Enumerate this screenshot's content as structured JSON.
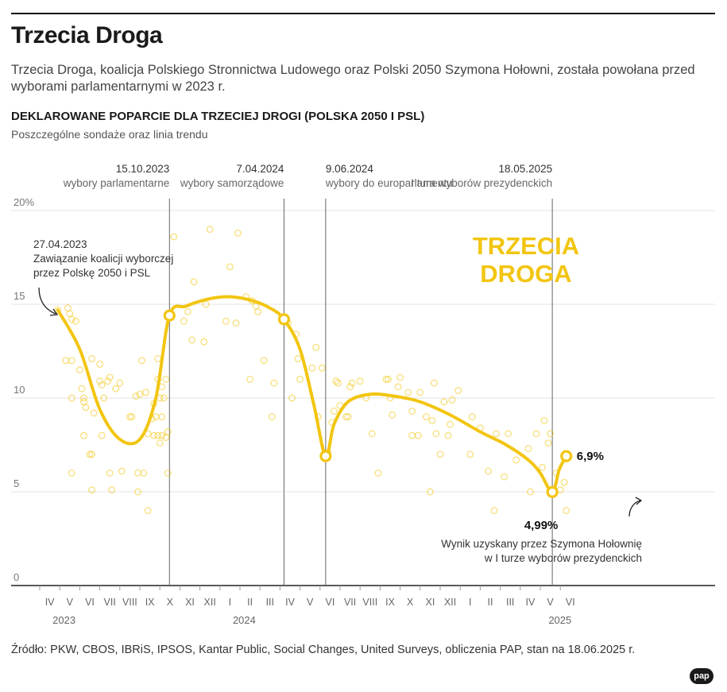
{
  "header": {
    "title": "Trzecia Droga",
    "subtitle": "Trzecia Droga, koalicja Polskiego Stronnictwa Ludowego oraz Polski 2050 Szymona Hołowni, została powołana przed wyborami parlamentarnymi w 2023 r.",
    "chart_heading": "DEKLAROWANE POPARCIE DLA TRZECIEJ DROGI (POLSKA 2050 I PSL)",
    "chart_subheading": "Poszczególne sondaże oraz linia trendu"
  },
  "footer": {
    "source": "Źródło: PKW, CBOS, IBRiS, IPSOS, Kantar Public, Social Changes, United Surveys, obliczenia PAP, stan na 18.06.2025 r.",
    "logo": "pap"
  },
  "colors": {
    "accent": "#f2c511",
    "line": "#f2c511",
    "grid": "#e3e3e3",
    "event": "#666666"
  },
  "chart_data": {
    "type": "scatter",
    "series_label": "TRZECIA DROGA",
    "ylim": [
      0,
      20
    ],
    "xlim": [
      0,
      26.6
    ],
    "y_ticks": [
      {
        "value": 20,
        "label": "20%"
      },
      {
        "value": 15,
        "label": "15"
      },
      {
        "value": 10,
        "label": "10"
      },
      {
        "value": 5,
        "label": "5"
      },
      {
        "value": 0,
        "label": "0"
      }
    ],
    "x_month_labels": [
      {
        "m": 0.5,
        "label": "IV"
      },
      {
        "m": 1.5,
        "label": "V"
      },
      {
        "m": 2.5,
        "label": "VI"
      },
      {
        "m": 3.5,
        "label": "VII"
      },
      {
        "m": 4.5,
        "label": "VIII"
      },
      {
        "m": 5.5,
        "label": "IX"
      },
      {
        "m": 6.5,
        "label": "X"
      },
      {
        "m": 7.5,
        "label": "XI"
      },
      {
        "m": 8.5,
        "label": "XII"
      },
      {
        "m": 9.5,
        "label": "I"
      },
      {
        "m": 10.5,
        "label": "II"
      },
      {
        "m": 11.5,
        "label": "III"
      },
      {
        "m": 12.5,
        "label": "IV"
      },
      {
        "m": 13.5,
        "label": "V"
      },
      {
        "m": 14.5,
        "label": "VI"
      },
      {
        "m": 15.5,
        "label": "VII"
      },
      {
        "m": 16.5,
        "label": "VIII"
      },
      {
        "m": 17.5,
        "label": "IX"
      },
      {
        "m": 18.5,
        "label": "X"
      },
      {
        "m": 19.5,
        "label": "XI"
      },
      {
        "m": 20.5,
        "label": "XII"
      },
      {
        "m": 21.5,
        "label": "I"
      },
      {
        "m": 22.5,
        "label": "II"
      },
      {
        "m": 23.5,
        "label": "III"
      },
      {
        "m": 24.5,
        "label": "IV"
      },
      {
        "m": 25.5,
        "label": "V"
      },
      {
        "m": 26.5,
        "label": "VI"
      }
    ],
    "x_year_labels": [
      {
        "m": 0.5,
        "label": "2023"
      },
      {
        "m": 9.5,
        "label": "2024"
      },
      {
        "m": 26.5,
        "label": "2025"
      }
    ],
    "events": [
      {
        "m": 6.48,
        "date": "15.10.2023",
        "label": "wybory parlamentarne"
      },
      {
        "m": 12.2,
        "date": "7.04.2024",
        "label": "wybory samorządowe"
      },
      {
        "m": 14.28,
        "date": "9.06.2024",
        "label": "wybory do europarlamentu"
      },
      {
        "m": 25.6,
        "date": "18.05.2025",
        "label": "I tura wyborów prezydenckich"
      }
    ],
    "trend": [
      {
        "m": 0.9,
        "v": 14.7
      },
      {
        "m": 2.0,
        "v": 12.6
      },
      {
        "m": 3.0,
        "v": 9.4
      },
      {
        "m": 4.0,
        "v": 7.8
      },
      {
        "m": 5.0,
        "v": 7.8
      },
      {
        "m": 5.8,
        "v": 10.0
      },
      {
        "m": 6.48,
        "v": 14.4
      },
      {
        "m": 7.3,
        "v": 14.9
      },
      {
        "m": 8.5,
        "v": 15.3
      },
      {
        "m": 9.5,
        "v": 15.4
      },
      {
        "m": 10.6,
        "v": 15.2
      },
      {
        "m": 11.5,
        "v": 14.8
      },
      {
        "m": 12.2,
        "v": 14.2
      },
      {
        "m": 13.0,
        "v": 12.6
      },
      {
        "m": 13.7,
        "v": 9.6
      },
      {
        "m": 14.28,
        "v": 6.9
      },
      {
        "m": 14.7,
        "v": 8.6
      },
      {
        "m": 15.4,
        "v": 9.8
      },
      {
        "m": 16.5,
        "v": 10.2
      },
      {
        "m": 17.7,
        "v": 10.1
      },
      {
        "m": 19.0,
        "v": 9.8
      },
      {
        "m": 20.5,
        "v": 9.1
      },
      {
        "m": 22.0,
        "v": 8.2
      },
      {
        "m": 23.3,
        "v": 7.5
      },
      {
        "m": 24.4,
        "v": 6.7
      },
      {
        "m": 25.0,
        "v": 6.0
      },
      {
        "m": 25.6,
        "v": 4.99
      },
      {
        "m": 25.95,
        "v": 6.2
      },
      {
        "m": 26.3,
        "v": 6.9
      }
    ],
    "markers": [
      {
        "m": 6.48,
        "v": 14.4,
        "label": ""
      },
      {
        "m": 12.2,
        "v": 14.2,
        "label": ""
      },
      {
        "m": 14.28,
        "v": 6.9,
        "label": ""
      },
      {
        "m": 25.6,
        "v": 4.99,
        "label": "4,99%"
      },
      {
        "m": 26.3,
        "v": 6.9,
        "label": "6,9%"
      }
    ],
    "polls": [
      [
        0.9,
        14.7
      ],
      [
        1.4,
        14.8
      ],
      [
        1.5,
        14.5
      ],
      [
        1.6,
        14.2
      ],
      [
        1.8,
        14.1
      ],
      [
        1.3,
        12.0
      ],
      [
        1.6,
        12.0
      ],
      [
        1.6,
        10.0
      ],
      [
        1.6,
        6.0
      ],
      [
        2.0,
        11.5
      ],
      [
        2.1,
        10.5
      ],
      [
        2.2,
        10.0
      ],
      [
        2.2,
        9.8
      ],
      [
        2.2,
        8.0
      ],
      [
        2.3,
        9.5
      ],
      [
        2.7,
        9.2
      ],
      [
        2.6,
        12.1
      ],
      [
        2.5,
        7.0
      ],
      [
        2.6,
        7.0
      ],
      [
        2.6,
        5.1
      ],
      [
        3.0,
        11.8
      ],
      [
        3.0,
        10.9
      ],
      [
        3.1,
        10.7
      ],
      [
        3.2,
        10.0
      ],
      [
        3.1,
        8.0
      ],
      [
        3.4,
        10.9
      ],
      [
        3.5,
        11.1
      ],
      [
        3.5,
        6.0
      ],
      [
        3.6,
        5.1
      ],
      [
        3.8,
        10.5
      ],
      [
        4.0,
        10.8
      ],
      [
        4.1,
        6.1
      ],
      [
        4.5,
        9.0
      ],
      [
        4.6,
        9.0
      ],
      [
        4.8,
        10.1
      ],
      [
        4.9,
        6.0
      ],
      [
        4.9,
        5.0
      ],
      [
        5.0,
        10.2
      ],
      [
        5.1,
        12.0
      ],
      [
        5.2,
        6.0
      ],
      [
        5.3,
        10.3
      ],
      [
        5.4,
        8.1
      ],
      [
        5.4,
        4.0
      ],
      [
        5.6,
        8.9
      ],
      [
        5.7,
        9.7
      ],
      [
        5.7,
        8.0
      ],
      [
        5.8,
        9.0
      ],
      [
        5.9,
        12.1
      ],
      [
        5.9,
        11.0
      ],
      [
        5.9,
        8.0
      ],
      [
        6.0,
        10.0
      ],
      [
        6.0,
        7.6
      ],
      [
        6.1,
        8.0
      ],
      [
        6.1,
        10.6
      ],
      [
        6.1,
        9.0
      ],
      [
        6.2,
        10.0
      ],
      [
        6.3,
        11.0
      ],
      [
        6.4,
        6.0
      ],
      [
        6.4,
        8.2
      ],
      [
        6.3,
        7.9
      ],
      [
        6.7,
        18.6
      ],
      [
        7.2,
        14.1
      ],
      [
        7.4,
        14.6
      ],
      [
        7.6,
        13.1
      ],
      [
        7.7,
        16.2
      ],
      [
        8.2,
        13.0
      ],
      [
        8.3,
        15.0
      ],
      [
        8.5,
        19.0
      ],
      [
        9.3,
        14.1
      ],
      [
        9.5,
        17.0
      ],
      [
        9.8,
        14.0
      ],
      [
        9.9,
        18.8
      ],
      [
        10.3,
        15.4
      ],
      [
        10.5,
        11.0
      ],
      [
        10.6,
        15.2
      ],
      [
        10.8,
        14.9
      ],
      [
        10.9,
        14.6
      ],
      [
        11.2,
        12.0
      ],
      [
        11.6,
        9.0
      ],
      [
        11.7,
        10.8
      ],
      [
        12.4,
        14.0
      ],
      [
        12.6,
        10.0
      ],
      [
        12.8,
        13.4
      ],
      [
        12.9,
        12.1
      ],
      [
        13.0,
        11.0
      ],
      [
        13.6,
        11.6
      ],
      [
        13.8,
        12.7
      ],
      [
        13.9,
        9.0
      ],
      [
        14.1,
        11.6
      ],
      [
        14.4,
        7.1
      ],
      [
        14.6,
        8.7
      ],
      [
        14.7,
        9.3
      ],
      [
        14.8,
        10.9
      ],
      [
        14.9,
        10.8
      ],
      [
        15.0,
        9.6
      ],
      [
        15.3,
        9.0
      ],
      [
        15.4,
        9.0
      ],
      [
        15.5,
        10.6
      ],
      [
        15.6,
        10.8
      ],
      [
        16.0,
        10.9
      ],
      [
        16.3,
        10.0
      ],
      [
        16.6,
        8.1
      ],
      [
        16.9,
        6.0
      ],
      [
        17.3,
        11.0
      ],
      [
        17.4,
        11.0
      ],
      [
        17.5,
        10.0
      ],
      [
        17.6,
        9.1
      ],
      [
        17.9,
        10.6
      ],
      [
        18.0,
        11.1
      ],
      [
        18.4,
        10.3
      ],
      [
        18.6,
        9.3
      ],
      [
        18.6,
        8.0
      ],
      [
        18.9,
        8.0
      ],
      [
        19.0,
        10.3
      ],
      [
        19.3,
        9.0
      ],
      [
        19.5,
        5.0
      ],
      [
        19.6,
        8.8
      ],
      [
        19.7,
        10.8
      ],
      [
        19.8,
        8.1
      ],
      [
        20.0,
        7.0
      ],
      [
        20.2,
        9.8
      ],
      [
        20.4,
        8.0
      ],
      [
        20.5,
        8.6
      ],
      [
        20.6,
        9.9
      ],
      [
        20.9,
        10.4
      ],
      [
        21.5,
        7.0
      ],
      [
        21.6,
        9.0
      ],
      [
        22.0,
        8.4
      ],
      [
        22.4,
        6.1
      ],
      [
        22.7,
        4.0
      ],
      [
        22.8,
        8.1
      ],
      [
        23.2,
        5.8
      ],
      [
        23.4,
        8.1
      ],
      [
        23.8,
        6.7
      ],
      [
        24.4,
        7.3
      ],
      [
        24.5,
        5.0
      ],
      [
        24.8,
        8.1
      ],
      [
        25.1,
        6.3
      ],
      [
        25.2,
        8.8
      ],
      [
        25.4,
        7.6
      ],
      [
        25.5,
        8.1
      ],
      [
        25.8,
        6.0
      ],
      [
        26.0,
        5.1
      ],
      [
        26.2,
        5.5
      ],
      [
        26.3,
        4.0
      ]
    ],
    "annotations": [
      {
        "id": "start",
        "lines": [
          "27.04.2023",
          "Zawiązanie koalicji wyborczej",
          "przez Polskę 2050 i PSL"
        ]
      },
      {
        "id": "result",
        "lines": [
          "Wynik uzyskany przez Szymona Hołownię",
          "w I turze wyborów prezydenckich"
        ]
      }
    ]
  }
}
